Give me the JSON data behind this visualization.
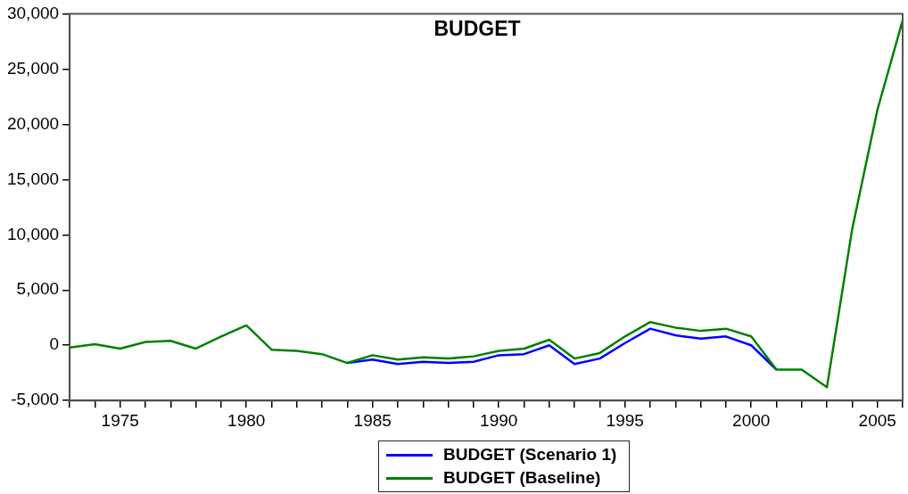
{
  "chart_data": {
    "type": "line",
    "title": "BUDGET",
    "x": [
      1973,
      1974,
      1975,
      1976,
      1977,
      1978,
      1979,
      1980,
      1981,
      1982,
      1983,
      1984,
      1985,
      1986,
      1987,
      1988,
      1989,
      1990,
      1991,
      1992,
      1993,
      1994,
      1995,
      1996,
      1997,
      1998,
      1999,
      2000,
      2001,
      2002,
      2003,
      2004,
      2005,
      2006
    ],
    "series": [
      {
        "name": "BUDGET (Scenario 1)",
        "color": "#0000ff",
        "values": [
          null,
          null,
          null,
          null,
          null,
          null,
          null,
          null,
          null,
          null,
          null,
          -1600,
          -1300,
          -1700,
          -1500,
          -1600,
          -1500,
          -900,
          -800,
          0,
          -1700,
          -1200,
          200,
          1500,
          900,
          600,
          800,
          0,
          -2200,
          null,
          null,
          null,
          null,
          null
        ]
      },
      {
        "name": "BUDGET (Baseline)",
        "color": "#008000",
        "values": [
          -200,
          100,
          -300,
          300,
          400,
          -300,
          800,
          1800,
          -400,
          -500,
          -800,
          -1600,
          -900,
          -1300,
          -1100,
          -1200,
          -1000,
          -500,
          -300,
          500,
          -1200,
          -700,
          800,
          2100,
          1600,
          1300,
          1500,
          800,
          -2200,
          -2200,
          -3800,
          10500,
          21300,
          29400
        ]
      }
    ],
    "xlim": [
      1973,
      2006
    ],
    "xticks": [
      {
        "value": 1973,
        "label": null
      },
      {
        "value": 1974,
        "label": null
      },
      1975,
      {
        "value": 1976,
        "label": null
      },
      {
        "value": 1977,
        "label": null
      },
      {
        "value": 1978,
        "label": null
      },
      {
        "value": 1979,
        "label": null
      },
      1980,
      {
        "value": 1981,
        "label": null
      },
      {
        "value": 1982,
        "label": null
      },
      {
        "value": 1983,
        "label": null
      },
      {
        "value": 1984,
        "label": null
      },
      1985,
      {
        "value": 1986,
        "label": null
      },
      {
        "value": 1987,
        "label": null
      },
      {
        "value": 1988,
        "label": null
      },
      {
        "value": 1989,
        "label": null
      },
      1990,
      {
        "value": 1991,
        "label": null
      },
      {
        "value": 1992,
        "label": null
      },
      {
        "value": 1993,
        "label": null
      },
      {
        "value": 1994,
        "label": null
      },
      1995,
      {
        "value": 1996,
        "label": null
      },
      {
        "value": 1997,
        "label": null
      },
      {
        "value": 1998,
        "label": null
      },
      {
        "value": 1999,
        "label": null
      },
      2000,
      {
        "value": 2001,
        "label": null
      },
      {
        "value": 2002,
        "label": null
      },
      {
        "value": 2003,
        "label": null
      },
      {
        "value": 2004,
        "label": null
      },
      2005,
      {
        "value": 2006,
        "label": null
      }
    ],
    "ylim": [
      -5000,
      30000
    ],
    "yticks": [
      {
        "value": -5000,
        "label": "-5,000"
      },
      0,
      {
        "value": 5000,
        "label": "5,000"
      },
      {
        "value": 10000,
        "label": "10,000"
      },
      {
        "value": 15000,
        "label": "15,000"
      },
      {
        "value": 20000,
        "label": "20,000"
      },
      {
        "value": 25000,
        "label": "25,000"
      },
      {
        "value": 30000,
        "label": "30,000"
      }
    ],
    "grid": false,
    "legend": "bottom",
    "marker": "none",
    "line_style": "solid"
  }
}
